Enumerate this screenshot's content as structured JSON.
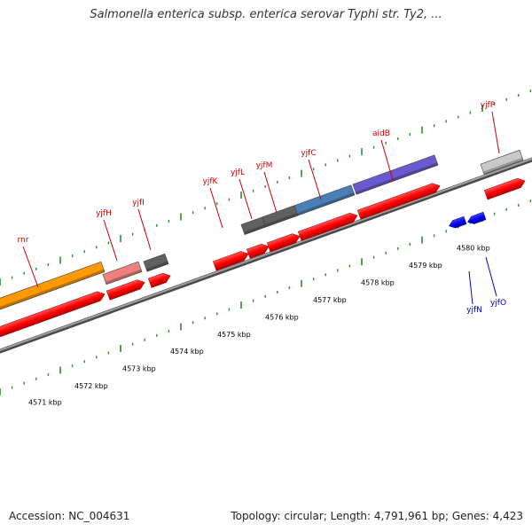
{
  "title": "Salmonella enterica subsp. enterica serovar Typhi str. Ty2, ...",
  "accession_label": "Accession: NC_004631",
  "topology_label": "Topology: circular; Length: 4,791,961 bp; Genes: 4,423",
  "colors": {
    "backbone": "#8c8c8c",
    "tick": "#2e8b2e",
    "cds_red": "#ff0000",
    "label_red": "#cc0000",
    "label_blue": "#0000cc",
    "orange": "#ff9900",
    "pink": "#ee8080",
    "gray": "#606060",
    "steelblue": "#4a7fb5",
    "purple": "#6a5acd",
    "lightgray": "#c8c8c8",
    "blue": "#0000ee"
  },
  "kbp_ticks": [
    "4571 kbp",
    "4572 kbp",
    "4573 kbp",
    "4574 kbp",
    "4575 kbp",
    "4576 kbp",
    "4577 kbp",
    "4578 kbp",
    "4579 kbp",
    "4580 kbp"
  ],
  "gene_labels": [
    {
      "name": "rnr",
      "color": "label_red"
    },
    {
      "name": "yjfH",
      "color": "label_red"
    },
    {
      "name": "yjfI",
      "color": "label_red"
    },
    {
      "name": "yjfK",
      "color": "label_red"
    },
    {
      "name": "yjfL",
      "color": "label_red"
    },
    {
      "name": "yjfM",
      "color": "label_red"
    },
    {
      "name": "yjfC",
      "color": "label_red"
    },
    {
      "name": "aidB",
      "color": "label_red"
    },
    {
      "name": "yjfP",
      "color": "label_red"
    },
    {
      "name": "yjfN",
      "color": "label_blue"
    },
    {
      "name": "yjfO",
      "color": "label_blue"
    }
  ],
  "feature_bars": [
    {
      "name": "rnr",
      "color": "orange"
    },
    {
      "name": "yjfH",
      "color": "pink"
    },
    {
      "name": "yjfI",
      "color": "gray"
    },
    {
      "name": "yjfL",
      "color": "gray"
    },
    {
      "name": "yjfM",
      "color": "gray"
    },
    {
      "name": "yjfC",
      "color": "steelblue"
    },
    {
      "name": "aidB",
      "color": "purple"
    },
    {
      "name": "yjfP",
      "color": "lightgray"
    }
  ]
}
